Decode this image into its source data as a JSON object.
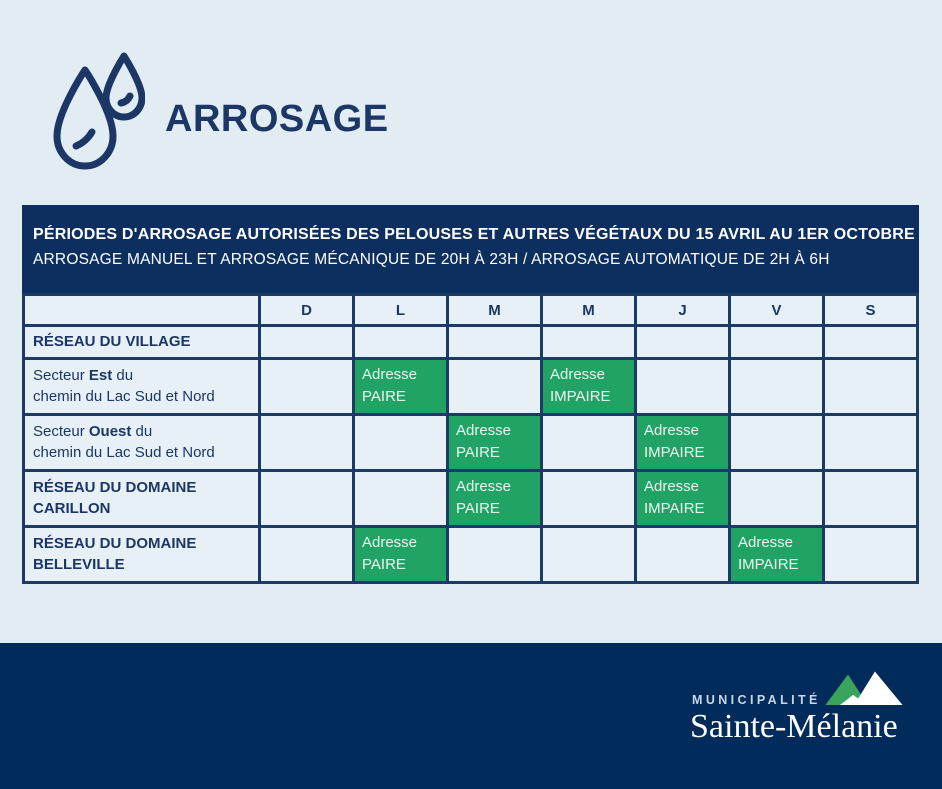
{
  "colors": {
    "background": "#e2ecf3",
    "navy_banner": "#0d2f5f",
    "navy_footer": "#012b5a",
    "navy_text": "#1c3765",
    "table_border": "#1c3a66",
    "green": "#22a366",
    "green_cell_text": "#eaf5ef",
    "logo_mountain_green": "#3aa45c"
  },
  "header": {
    "title": "ARROSAGE",
    "icon": "water-drops-icon"
  },
  "schedule": {
    "banner": {
      "line1": "PÉRIODES D'ARROSAGE AUTORISÉES DES PELOUSES ET AUTRES VÉGÉTAUX DU 15 AVRIL AU 1ER OCTOBRE",
      "line2": "ARROSAGE MANUEL ET ARROSAGE MÉCANIQUE DE 20H À 23H / ARROSAGE AUTOMATIQUE DE 2H À 6H"
    },
    "day_headers": [
      "D",
      "L",
      "M",
      "M",
      "J",
      "V",
      "S"
    ],
    "rows": [
      {
        "label_lines": [
          [
            {
              "text": "RÉSEAU DU VILLAGE",
              "bold": true
            }
          ]
        ],
        "cells": [
          null,
          null,
          null,
          null,
          null,
          null,
          null
        ]
      },
      {
        "label_lines": [
          [
            {
              "text": "Secteur ",
              "bold": false
            },
            {
              "text": "Est",
              "bold": true
            },
            {
              "text": " du",
              "bold": false
            }
          ],
          [
            {
              "text": "chemin du Lac Sud et Nord",
              "bold": false
            }
          ]
        ],
        "cells": [
          null,
          "Adresse\nPAIRE",
          null,
          "Adresse\nIMPAIRE",
          null,
          null,
          null
        ]
      },
      {
        "label_lines": [
          [
            {
              "text": "Secteur ",
              "bold": false
            },
            {
              "text": "Ouest",
              "bold": true
            },
            {
              "text": " du",
              "bold": false
            }
          ],
          [
            {
              "text": "chemin du Lac Sud et Nord",
              "bold": false
            }
          ]
        ],
        "cells": [
          null,
          null,
          "Adresse\nPAIRE",
          null,
          "Adresse\nIMPAIRE",
          null,
          null
        ]
      },
      {
        "label_lines": [
          [
            {
              "text": "RÉSEAU DU DOMAINE",
              "bold": true
            }
          ],
          [
            {
              "text": "CARILLON",
              "bold": true
            }
          ]
        ],
        "cells": [
          null,
          null,
          "Adresse\nPAIRE",
          null,
          "Adresse\nIMPAIRE",
          null,
          null
        ]
      },
      {
        "label_lines": [
          [
            {
              "text": "RÉSEAU DU DOMAINE",
              "bold": true
            }
          ],
          [
            {
              "text": "BELLEVILLE",
              "bold": true
            }
          ]
        ],
        "cells": [
          null,
          "Adresse\nPAIRE",
          null,
          null,
          null,
          "Adresse\nIMPAIRE",
          null
        ]
      }
    ]
  },
  "footer": {
    "org_small": "MUNICIPALITÉ",
    "org_name": "Sainte-Mélanie"
  }
}
